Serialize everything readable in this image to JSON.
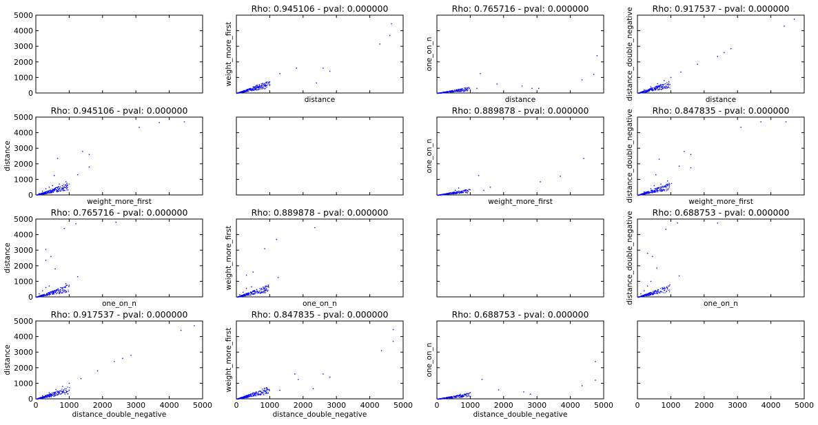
{
  "figure": {
    "type": "scatter-matrix",
    "variables": [
      "distance",
      "weight_more_first",
      "one_on_n",
      "distance_double_negative"
    ],
    "series_color": "#0000ff",
    "tick_values": [
      0,
      1000,
      2000,
      3000,
      4000,
      5000
    ],
    "tick_labels": [
      "0",
      "1000",
      "2000",
      "3000",
      "4000",
      "5000"
    ],
    "axis_range": [
      0,
      5000
    ]
  },
  "chart_data": [
    {
      "type": "scatter",
      "row": 0,
      "col": 0,
      "title": "",
      "xlabel": "",
      "ylabel": "",
      "points": []
    },
    {
      "type": "scatter",
      "row": 0,
      "col": 1,
      "title": "Rho: 0.945106 - pval: 0.000000",
      "xlabel": "distance",
      "ylabel": "weight_more_first",
      "points": [
        [
          4650,
          4450
        ],
        [
          4600,
          3700
        ],
        [
          4300,
          3150
        ],
        [
          2800,
          1400
        ],
        [
          2600,
          1600
        ],
        [
          2400,
          650
        ],
        [
          1800,
          1600
        ],
        [
          1300,
          1250
        ],
        [
          1000,
          550
        ],
        [
          900,
          500
        ],
        [
          850,
          450
        ],
        [
          700,
          400
        ],
        [
          650,
          350
        ],
        [
          600,
          500
        ],
        [
          500,
          400
        ],
        [
          400,
          250
        ],
        [
          300,
          150
        ],
        [
          200,
          100
        ],
        [
          100,
          50
        ]
      ]
    },
    {
      "type": "scatter",
      "row": 0,
      "col": 2,
      "title": "Rho: 0.765716 - pval: 0.000000",
      "xlabel": "distance",
      "ylabel": "one_on_n",
      "points": [
        [
          4800,
          2400
        ],
        [
          4700,
          1200
        ],
        [
          4350,
          850
        ],
        [
          3050,
          300
        ],
        [
          2850,
          300
        ],
        [
          2550,
          450
        ],
        [
          1800,
          580
        ],
        [
          1300,
          1250
        ],
        [
          1200,
          300
        ],
        [
          1000,
          200
        ],
        [
          900,
          150
        ],
        [
          800,
          100
        ],
        [
          600,
          150
        ],
        [
          500,
          100
        ],
        [
          300,
          50
        ]
      ]
    },
    {
      "type": "scatter",
      "row": 0,
      "col": 3,
      "title": "Rho: 0.917537 - pval: 0.000000",
      "xlabel": "distance",
      "ylabel": "distance_double_negative",
      "points": [
        [
          4700,
          4750
        ],
        [
          4400,
          4300
        ],
        [
          2800,
          2850
        ],
        [
          2600,
          2600
        ],
        [
          2400,
          2350
        ],
        [
          1800,
          1850
        ],
        [
          1300,
          1350
        ],
        [
          1000,
          1000
        ],
        [
          800,
          800
        ],
        [
          600,
          600
        ],
        [
          400,
          400
        ],
        [
          200,
          200
        ]
      ]
    },
    {
      "type": "scatter",
      "row": 1,
      "col": 0,
      "title": "Rho: 0.945106 - pval: 0.000000",
      "xlabel": "weight_more_first",
      "ylabel": "distance",
      "points": [
        [
          4450,
          4700
        ],
        [
          3700,
          4650
        ],
        [
          3100,
          4350
        ],
        [
          1400,
          2800
        ],
        [
          1600,
          2600
        ],
        [
          1250,
          1300
        ],
        [
          1600,
          1800
        ],
        [
          650,
          2350
        ],
        [
          550,
          1250
        ],
        [
          900,
          850
        ],
        [
          700,
          700
        ],
        [
          500,
          600
        ],
        [
          400,
          500
        ],
        [
          300,
          400
        ],
        [
          200,
          250
        ],
        [
          100,
          100
        ]
      ]
    },
    {
      "type": "scatter",
      "row": 1,
      "col": 1,
      "title": "",
      "xlabel": "",
      "ylabel": "",
      "points": []
    },
    {
      "type": "scatter",
      "row": 1,
      "col": 2,
      "title": "Rho: 0.889878 - pval: 0.000000",
      "xlabel": "weight_more_first",
      "ylabel": "one_on_n",
      "points": [
        [
          4400,
          2350
        ],
        [
          3700,
          1200
        ],
        [
          3100,
          850
        ],
        [
          1600,
          500
        ],
        [
          1400,
          300
        ],
        [
          1250,
          1250
        ],
        [
          650,
          450
        ],
        [
          550,
          300
        ],
        [
          400,
          150
        ],
        [
          300,
          100
        ],
        [
          200,
          50
        ]
      ]
    },
    {
      "type": "scatter",
      "row": 1,
      "col": 3,
      "title": "Rho: 0.847835 - pval: 0.000000",
      "xlabel": "weight_more_first",
      "ylabel": "distance_double_negative",
      "points": [
        [
          4450,
          4700
        ],
        [
          3700,
          4700
        ],
        [
          3100,
          4350
        ],
        [
          1400,
          2800
        ],
        [
          1600,
          2600
        ],
        [
          1250,
          1850
        ],
        [
          1600,
          1750
        ],
        [
          650,
          2300
        ],
        [
          550,
          1300
        ],
        [
          900,
          900
        ],
        [
          700,
          700
        ],
        [
          500,
          600
        ],
        [
          400,
          400
        ],
        [
          200,
          200
        ]
      ]
    },
    {
      "type": "scatter",
      "row": 2,
      "col": 0,
      "title": "Rho: 0.765716 - pval: 0.000000",
      "xlabel": "one_on_n",
      "ylabel": "distance",
      "points": [
        [
          2400,
          4800
        ],
        [
          1200,
          4700
        ],
        [
          850,
          4400
        ],
        [
          300,
          3050
        ],
        [
          450,
          2600
        ],
        [
          580,
          1800
        ],
        [
          1250,
          1300
        ],
        [
          300,
          2350
        ],
        [
          900,
          850
        ],
        [
          400,
          700
        ],
        [
          300,
          600
        ],
        [
          200,
          400
        ],
        [
          100,
          200
        ]
      ]
    },
    {
      "type": "scatter",
      "row": 2,
      "col": 1,
      "title": "Rho: 0.889878 - pval: 0.000000",
      "xlabel": "one_on_n",
      "ylabel": "weight_more_first",
      "points": [
        [
          2350,
          4450
        ],
        [
          1200,
          3700
        ],
        [
          850,
          3100
        ],
        [
          500,
          1600
        ],
        [
          300,
          1400
        ],
        [
          1250,
          1250
        ],
        [
          450,
          650
        ],
        [
          300,
          550
        ],
        [
          200,
          300
        ],
        [
          100,
          150
        ]
      ]
    },
    {
      "type": "scatter",
      "row": 2,
      "col": 2,
      "title": "",
      "xlabel": "",
      "ylabel": "",
      "points": []
    },
    {
      "type": "scatter",
      "row": 2,
      "col": 3,
      "title": "Rho: 0.688753 - pval: 0.000000",
      "xlabel": "one_on_n",
      "ylabel": "distance_double_negative",
      "points": [
        [
          2400,
          4750
        ],
        [
          1200,
          4750
        ],
        [
          850,
          4350
        ],
        [
          300,
          2800
        ],
        [
          450,
          2600
        ],
        [
          580,
          1850
        ],
        [
          1250,
          1350
        ],
        [
          400,
          1000
        ],
        [
          300,
          700
        ],
        [
          200,
          400
        ],
        [
          100,
          200
        ]
      ]
    },
    {
      "type": "scatter",
      "row": 3,
      "col": 0,
      "title": "Rho: 0.917537 - pval: 0.000000",
      "xlabel": "distance_double_negative",
      "ylabel": "distance",
      "points": [
        [
          4750,
          4700
        ],
        [
          4350,
          4400
        ],
        [
          2850,
          2800
        ],
        [
          2600,
          2600
        ],
        [
          2350,
          2400
        ],
        [
          1850,
          1800
        ],
        [
          1350,
          1300
        ],
        [
          1000,
          1000
        ],
        [
          800,
          800
        ],
        [
          600,
          600
        ],
        [
          400,
          400
        ],
        [
          200,
          200
        ]
      ]
    },
    {
      "type": "scatter",
      "row": 3,
      "col": 1,
      "title": "Rho: 0.847835 - pval: 0.000000",
      "xlabel": "distance_double_negative",
      "ylabel": "weight_more_first",
      "points": [
        [
          4700,
          4450
        ],
        [
          4700,
          3700
        ],
        [
          4350,
          3100
        ],
        [
          2800,
          1400
        ],
        [
          2600,
          1600
        ],
        [
          1850,
          1250
        ],
        [
          1750,
          1600
        ],
        [
          2300,
          650
        ],
        [
          1300,
          550
        ],
        [
          900,
          700
        ],
        [
          700,
          500
        ],
        [
          500,
          400
        ],
        [
          300,
          200
        ],
        [
          100,
          50
        ]
      ]
    },
    {
      "type": "scatter",
      "row": 3,
      "col": 2,
      "title": "Rho: 0.688753 - pval: 0.000000",
      "xlabel": "distance_double_negative",
      "ylabel": "one_on_n",
      "points": [
        [
          4750,
          2400
        ],
        [
          4750,
          1200
        ],
        [
          4350,
          850
        ],
        [
          2800,
          300
        ],
        [
          2600,
          450
        ],
        [
          1850,
          580
        ],
        [
          1350,
          1250
        ],
        [
          1000,
          400
        ],
        [
          700,
          300
        ],
        [
          500,
          150
        ],
        [
          300,
          100
        ]
      ]
    },
    {
      "type": "scatter",
      "row": 3,
      "col": 3,
      "title": "",
      "xlabel": "",
      "ylabel": "",
      "points": []
    }
  ]
}
